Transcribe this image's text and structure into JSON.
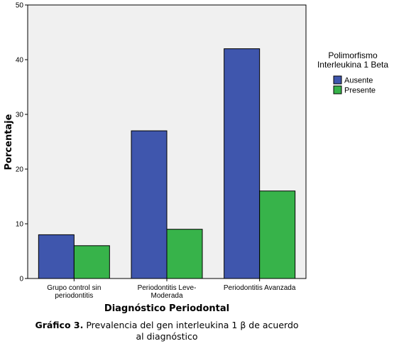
{
  "chart_data": {
    "type": "bar",
    "categories": [
      [
        "Grupo control sin",
        "periodontitis"
      ],
      [
        "Periodontitis Leve-",
        "Moderada"
      ],
      [
        "Periodontitis Avanzada"
      ]
    ],
    "series": [
      {
        "name": "Ausente",
        "color": "#3f56ad",
        "values": [
          8,
          27,
          42
        ]
      },
      {
        "name": "Presente",
        "color": "#37b34a",
        "values": [
          6,
          9,
          16
        ]
      }
    ],
    "xlabel": "Diagnóstico Periodontal",
    "ylabel": "Porcentaje",
    "ylim": [
      0,
      50
    ],
    "yticks": [
      "0",
      "10",
      "20",
      "30",
      "40",
      "50"
    ],
    "legend": {
      "title_lines": [
        "Polimorfismo",
        "Interleukina 1 Beta"
      ],
      "placement": "right"
    },
    "plot_background": "#f0f0f0",
    "grid": false
  },
  "caption": {
    "label": "Gráfico 3.",
    "text_line1": "Prevalencia del gen interleukina 1 β de acuerdo",
    "text_line2": "al diagnóstico"
  }
}
